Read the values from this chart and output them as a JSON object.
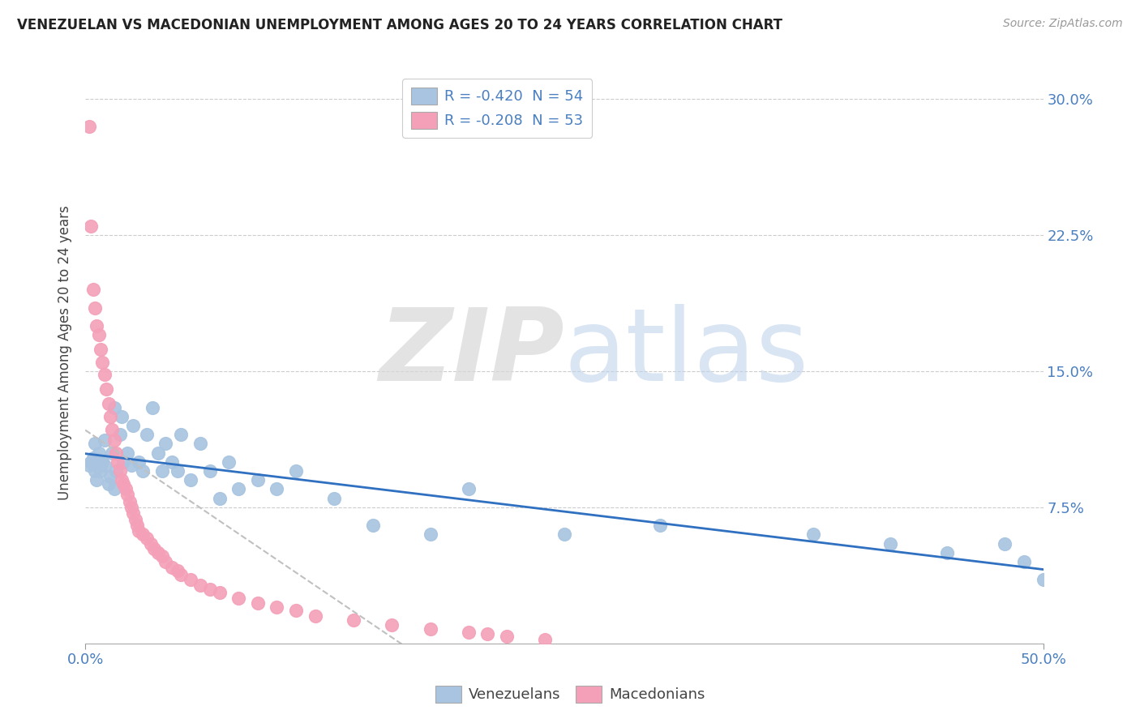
{
  "title": "VENEZUELAN VS MACEDONIAN UNEMPLOYMENT AMONG AGES 20 TO 24 YEARS CORRELATION CHART",
  "source": "Source: ZipAtlas.com",
  "ylabel": "Unemployment Among Ages 20 to 24 years",
  "yticks_right": [
    "30.0%",
    "22.5%",
    "15.0%",
    "7.5%"
  ],
  "ytick_vals": [
    0.3,
    0.225,
    0.15,
    0.075
  ],
  "legend_venezuelans": "R = -0.420  N = 54",
  "legend_macedonians": "R = -0.208  N = 53",
  "venezuelan_color": "#a8c4e0",
  "macedonian_color": "#f4a0b8",
  "venezuelan_line_color": "#3070c0",
  "macedonian_line_color": "#c0c0c0",
  "xlim": [
    0.0,
    0.5
  ],
  "ylim": [
    0.0,
    0.32
  ],
  "background_color": "#ffffff",
  "venezuelan_x": [
    0.002,
    0.003,
    0.004,
    0.005,
    0.005,
    0.006,
    0.007,
    0.008,
    0.009,
    0.01,
    0.01,
    0.012,
    0.013,
    0.014,
    0.015,
    0.015,
    0.016,
    0.018,
    0.019,
    0.02,
    0.022,
    0.024,
    0.025,
    0.028,
    0.03,
    0.032,
    0.035,
    0.038,
    0.04,
    0.042,
    0.045,
    0.048,
    0.05,
    0.055,
    0.06,
    0.065,
    0.07,
    0.075,
    0.08,
    0.09,
    0.1,
    0.11,
    0.13,
    0.15,
    0.18,
    0.2,
    0.25,
    0.3,
    0.38,
    0.42,
    0.45,
    0.48,
    0.49,
    0.5
  ],
  "venezuelan_y": [
    0.098,
    0.1,
    0.102,
    0.095,
    0.11,
    0.09,
    0.105,
    0.095,
    0.1,
    0.098,
    0.112,
    0.088,
    0.092,
    0.105,
    0.085,
    0.13,
    0.095,
    0.115,
    0.125,
    0.1,
    0.105,
    0.098,
    0.12,
    0.1,
    0.095,
    0.115,
    0.13,
    0.105,
    0.095,
    0.11,
    0.1,
    0.095,
    0.115,
    0.09,
    0.11,
    0.095,
    0.08,
    0.1,
    0.085,
    0.09,
    0.085,
    0.095,
    0.08,
    0.065,
    0.06,
    0.085,
    0.06,
    0.065,
    0.06,
    0.055,
    0.05,
    0.055,
    0.045,
    0.035
  ],
  "macedonian_x": [
    0.002,
    0.003,
    0.004,
    0.005,
    0.006,
    0.007,
    0.008,
    0.009,
    0.01,
    0.011,
    0.012,
    0.013,
    0.014,
    0.015,
    0.016,
    0.017,
    0.018,
    0.019,
    0.02,
    0.021,
    0.022,
    0.023,
    0.024,
    0.025,
    0.026,
    0.027,
    0.028,
    0.03,
    0.032,
    0.034,
    0.036,
    0.038,
    0.04,
    0.042,
    0.045,
    0.048,
    0.05,
    0.055,
    0.06,
    0.065,
    0.07,
    0.08,
    0.09,
    0.1,
    0.11,
    0.12,
    0.14,
    0.16,
    0.18,
    0.2,
    0.21,
    0.22,
    0.24
  ],
  "macedonian_y": [
    0.285,
    0.23,
    0.195,
    0.185,
    0.175,
    0.17,
    0.162,
    0.155,
    0.148,
    0.14,
    0.132,
    0.125,
    0.118,
    0.112,
    0.105,
    0.1,
    0.095,
    0.09,
    0.088,
    0.085,
    0.082,
    0.078,
    0.075,
    0.072,
    0.068,
    0.065,
    0.062,
    0.06,
    0.058,
    0.055,
    0.052,
    0.05,
    0.048,
    0.045,
    0.042,
    0.04,
    0.038,
    0.035,
    0.032,
    0.03,
    0.028,
    0.025,
    0.022,
    0.02,
    0.018,
    0.015,
    0.013,
    0.01,
    0.008,
    0.006,
    0.005,
    0.004,
    0.002
  ]
}
